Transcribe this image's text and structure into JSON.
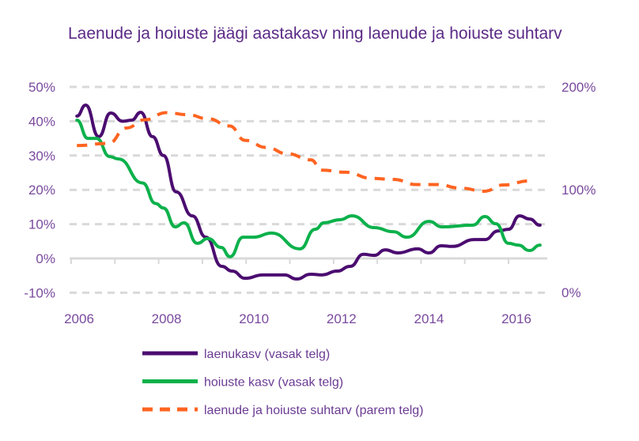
{
  "chart_data": {
    "type": "line",
    "title": "Laenude ja hoiuste jäägi aastakasv ning laenude ja hoiuste suhtarv",
    "xlabel": "",
    "ylabel": "",
    "x_ticks": [
      "2006",
      "2008",
      "2010",
      "2012",
      "2014",
      "2016"
    ],
    "xlim": [
      2006,
      2016.6
    ],
    "y_left": {
      "ticks": [
        "-10%",
        "0%",
        "10%",
        "20%",
        "30%",
        "40%",
        "50%"
      ],
      "range": [
        -10,
        50
      ],
      "unit": "%"
    },
    "y_right": {
      "ticks": [
        "0%",
        "100%",
        "200%"
      ],
      "range": [
        0,
        200
      ],
      "unit": "%"
    },
    "grid": true,
    "legend_position": "bottom",
    "series": [
      {
        "name": "laenukasv (vasak telg)",
        "axis": "left",
        "color": "#4b0c70",
        "style": "solid",
        "x": [
          2005.95,
          2006.15,
          2006.45,
          2006.72,
          2007.0,
          2007.2,
          2007.41,
          2007.68,
          2007.93,
          2008.22,
          2008.59,
          2008.9,
          2009.26,
          2009.5,
          2009.8,
          2010.2,
          2010.7,
          2010.97,
          2011.3,
          2011.55,
          2011.9,
          2012.2,
          2012.5,
          2012.75,
          2013.0,
          2013.29,
          2013.74,
          2014.0,
          2014.28,
          2014.53,
          2015.04,
          2015.28,
          2015.58,
          2015.82,
          2016.07,
          2016.3,
          2016.54
        ],
        "y": [
          41.5,
          44.7,
          35.5,
          42.4,
          40,
          40.3,
          42.6,
          35.5,
          30,
          19.4,
          12.4,
          6.2,
          -2.3,
          -3.7,
          -5.8,
          -4.8,
          -4.8,
          -6,
          -4.6,
          -4.8,
          -3.7,
          -2.3,
          1.2,
          0.9,
          2.5,
          1.6,
          2.8,
          1.6,
          3.7,
          3.5,
          5.5,
          5.5,
          8,
          8.5,
          12.4,
          11.5,
          9.7
        ]
      },
      {
        "name": "hoiuste kasv (vasak telg)",
        "axis": "left",
        "color": "#0cb14b",
        "style": "solid",
        "x": [
          2005.95,
          2006.2,
          2006.4,
          2006.7,
          2006.9,
          2007.45,
          2007.75,
          2007.93,
          2008.2,
          2008.4,
          2008.7,
          2008.95,
          2009.25,
          2009.45,
          2009.75,
          2010.0,
          2010.4,
          2011.05,
          2011.4,
          2011.6,
          2011.97,
          2012.24,
          2012.75,
          2013.18,
          2013.5,
          2014.0,
          2014.3,
          2015.0,
          2015.28,
          2015.53,
          2015.82,
          2016.04,
          2016.3,
          2016.54
        ],
        "y": [
          40.3,
          35,
          35,
          29.7,
          29,
          22,
          16,
          14.7,
          9.2,
          10.4,
          4.4,
          5.8,
          3.2,
          0.5,
          6.2,
          6.2,
          7.4,
          2.8,
          8.5,
          10.4,
          11.3,
          12.4,
          9,
          7.8,
          6.2,
          10.8,
          9.2,
          9.7,
          12.2,
          10.1,
          4.4,
          3.9,
          2.3,
          3.9
        ]
      },
      {
        "name": "laenude ja hoiuste suhtarv (parem telg)",
        "axis": "right",
        "color": "#ff6421",
        "style": "dashed",
        "x": [
          2005.95,
          2006.67,
          2007.08,
          2007.5,
          2008.0,
          2008.48,
          2008.95,
          2009.44,
          2009.8,
          2010.29,
          2010.76,
          2011.3,
          2011.55,
          2012.09,
          2012.7,
          2013.18,
          2013.72,
          2014.19,
          2014.73,
          2015.26,
          2015.71,
          2016.3
        ],
        "y": [
          143,
          145,
          160,
          168,
          175,
          173,
          169,
          162,
          148,
          141,
          135,
          129,
          119,
          117,
          111,
          110,
          105,
          105,
          101.5,
          98.5,
          104.6,
          108.5
        ]
      }
    ]
  }
}
